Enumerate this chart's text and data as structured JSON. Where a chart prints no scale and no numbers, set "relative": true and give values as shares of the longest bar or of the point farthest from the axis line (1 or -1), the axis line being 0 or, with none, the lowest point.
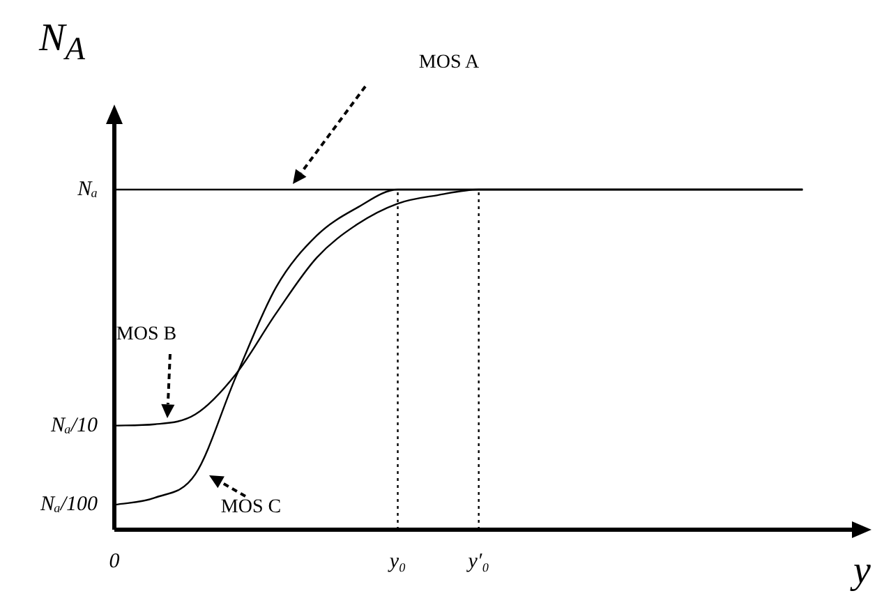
{
  "chart_data": {
    "type": "line",
    "relative": true,
    "ylabel": "N$_{A}$",
    "xlabel": "y",
    "categories": [
      "0",
      null,
      null,
      null,
      null,
      null,
      null,
      "y₀",
      null,
      "y′₀",
      null,
      null,
      null,
      null,
      null,
      null,
      null,
      null
    ],
    "series": [
      {
        "color": "#000000",
        "values": [
          1,
          1,
          1,
          1,
          1,
          1,
          1,
          1,
          1,
          1,
          1,
          1,
          1,
          1,
          1,
          1,
          1,
          1
        ]
      },
      {
        "color": "#000000",
        "values": [
          0.306,
          0.31,
          0.339,
          0.457,
          0.637,
          0.8,
          0.898,
          0.959,
          0.984,
          1,
          1,
          1,
          1,
          1,
          1,
          1,
          1,
          1
        ]
      },
      {
        "color": "#000000",
        "values": [
          0.073,
          0.094,
          0.163,
          0.449,
          0.714,
          0.865,
          0.947,
          1,
          1,
          1,
          1,
          1,
          1,
          1,
          1,
          1,
          1,
          1
        ]
      }
    ],
    "ref_lines": [
      {
        "axis": "x",
        "value": "y₀",
        "line_style": "dotted"
      },
      {
        "axis": "x",
        "value": "y′₀",
        "line_style": "dotted"
      }
    ],
    "annotations": [
      "MOS A",
      "MOS B",
      "MOS C",
      "Nₐ",
      "Nₐ/10",
      "Nₐ/100"
    ],
    "marker": "none",
    "line_style": "solid",
    "grid": false,
    "legend": false
  }
}
